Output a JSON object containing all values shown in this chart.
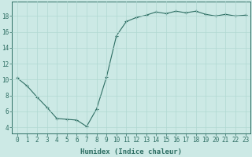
{
  "x": [
    0,
    1,
    2,
    3,
    4,
    5,
    6,
    7,
    8,
    9,
    10,
    11,
    12,
    13,
    14,
    15,
    16,
    17,
    18,
    19,
    20,
    21,
    22,
    23
  ],
  "y": [
    10.2,
    9.2,
    7.8,
    6.5,
    5.1,
    5.0,
    4.9,
    4.1,
    6.3,
    10.3,
    15.5,
    17.3,
    17.8,
    18.1,
    18.5,
    18.3,
    18.6,
    18.4,
    18.6,
    18.2,
    18.0,
    18.2,
    18.0,
    18.1
  ],
  "line_color": "#2e6e63",
  "marker": "+",
  "bg_color": "#cce9e5",
  "grid_color": "#b0d8d2",
  "xlabel": "Humidex (Indice chaleur)",
  "ylabel_ticks": [
    4,
    6,
    8,
    10,
    12,
    14,
    16,
    18
  ],
  "xlim": [
    -0.5,
    23.5
  ],
  "ylim": [
    3.2,
    19.8
  ],
  "tick_color": "#2e6e63",
  "label_fontsize": 6.5,
  "tick_fontsize": 5.5
}
